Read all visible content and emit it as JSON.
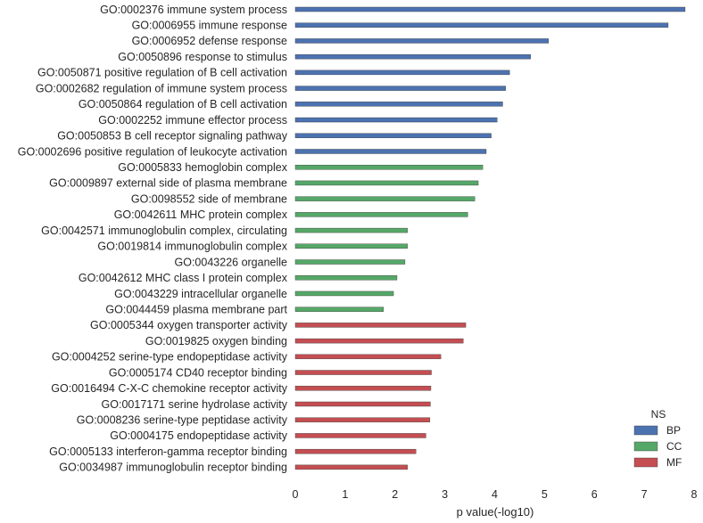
{
  "chart_data": {
    "type": "bar",
    "orientation": "horizontal",
    "xlabel": "p value(-log10)",
    "ylabel": "",
    "xlim": [
      0,
      8
    ],
    "xticks": [
      0,
      1,
      2,
      3,
      4,
      5,
      6,
      7,
      8
    ],
    "grid": false,
    "legend": {
      "title": "NS",
      "placement": "bottom-right",
      "entries": [
        {
          "name": "BP",
          "color": "#4c72b0"
        },
        {
          "name": "CC",
          "color": "#55a868"
        },
        {
          "name": "MF",
          "color": "#c44e52"
        }
      ]
    },
    "bars": [
      {
        "label": "GO:0002376 immune system process",
        "value": 7.82,
        "ns": "BP"
      },
      {
        "label": "GO:0006955 immune response",
        "value": 7.48,
        "ns": "BP"
      },
      {
        "label": "GO:0006952 defense response",
        "value": 5.08,
        "ns": "BP"
      },
      {
        "label": "GO:0050896 response to stimulus",
        "value": 4.72,
        "ns": "BP"
      },
      {
        "label": "GO:0050871 positive regulation of B cell activation",
        "value": 4.3,
        "ns": "BP"
      },
      {
        "label": "GO:0002682 regulation of immune system process",
        "value": 4.22,
        "ns": "BP"
      },
      {
        "label": "GO:0050864 regulation of B cell activation",
        "value": 4.16,
        "ns": "BP"
      },
      {
        "label": "GO:0002252 immune effector process",
        "value": 4.05,
        "ns": "BP"
      },
      {
        "label": "GO:0050853 B cell receptor signaling pathway",
        "value": 3.93,
        "ns": "BP"
      },
      {
        "label": "GO:0002696 positive regulation of leukocyte activation",
        "value": 3.83,
        "ns": "BP"
      },
      {
        "label": "GO:0005833 hemoglobin complex",
        "value": 3.76,
        "ns": "CC"
      },
      {
        "label": "GO:0009897 external side of plasma membrane",
        "value": 3.67,
        "ns": "CC"
      },
      {
        "label": "GO:0098552 side of membrane",
        "value": 3.6,
        "ns": "CC"
      },
      {
        "label": "GO:0042611 MHC protein complex",
        "value": 3.46,
        "ns": "CC"
      },
      {
        "label": "GO:0042571 immunoglobulin complex, circulating",
        "value": 2.25,
        "ns": "CC"
      },
      {
        "label": "GO:0019814 immunoglobulin complex",
        "value": 2.25,
        "ns": "CC"
      },
      {
        "label": "GO:0043226 organelle",
        "value": 2.2,
        "ns": "CC"
      },
      {
        "label": "GO:0042612 MHC class I protein complex",
        "value": 2.04,
        "ns": "CC"
      },
      {
        "label": "GO:0043229 intracellular organelle",
        "value": 1.97,
        "ns": "CC"
      },
      {
        "label": "GO:0044459 plasma membrane part",
        "value": 1.77,
        "ns": "CC"
      },
      {
        "label": "GO:0005344 oxygen transporter activity",
        "value": 3.42,
        "ns": "MF"
      },
      {
        "label": "GO:0019825 oxygen binding",
        "value": 3.37,
        "ns": "MF"
      },
      {
        "label": "GO:0004252 serine-type endopeptidase activity",
        "value": 2.92,
        "ns": "MF"
      },
      {
        "label": "GO:0005174 CD40 receptor binding",
        "value": 2.73,
        "ns": "MF"
      },
      {
        "label": "GO:0016494 C-X-C chemokine receptor activity",
        "value": 2.72,
        "ns": "MF"
      },
      {
        "label": "GO:0017171 serine hydrolase activity",
        "value": 2.71,
        "ns": "MF"
      },
      {
        "label": "GO:0008236 serine-type peptidase activity",
        "value": 2.7,
        "ns": "MF"
      },
      {
        "label": "GO:0004175 endopeptidase activity",
        "value": 2.62,
        "ns": "MF"
      },
      {
        "label": "GO:0005133 interferon-gamma receptor binding",
        "value": 2.42,
        "ns": "MF"
      },
      {
        "label": "GO:0034987 immunoglobulin receptor binding",
        "value": 2.25,
        "ns": "MF"
      }
    ]
  }
}
